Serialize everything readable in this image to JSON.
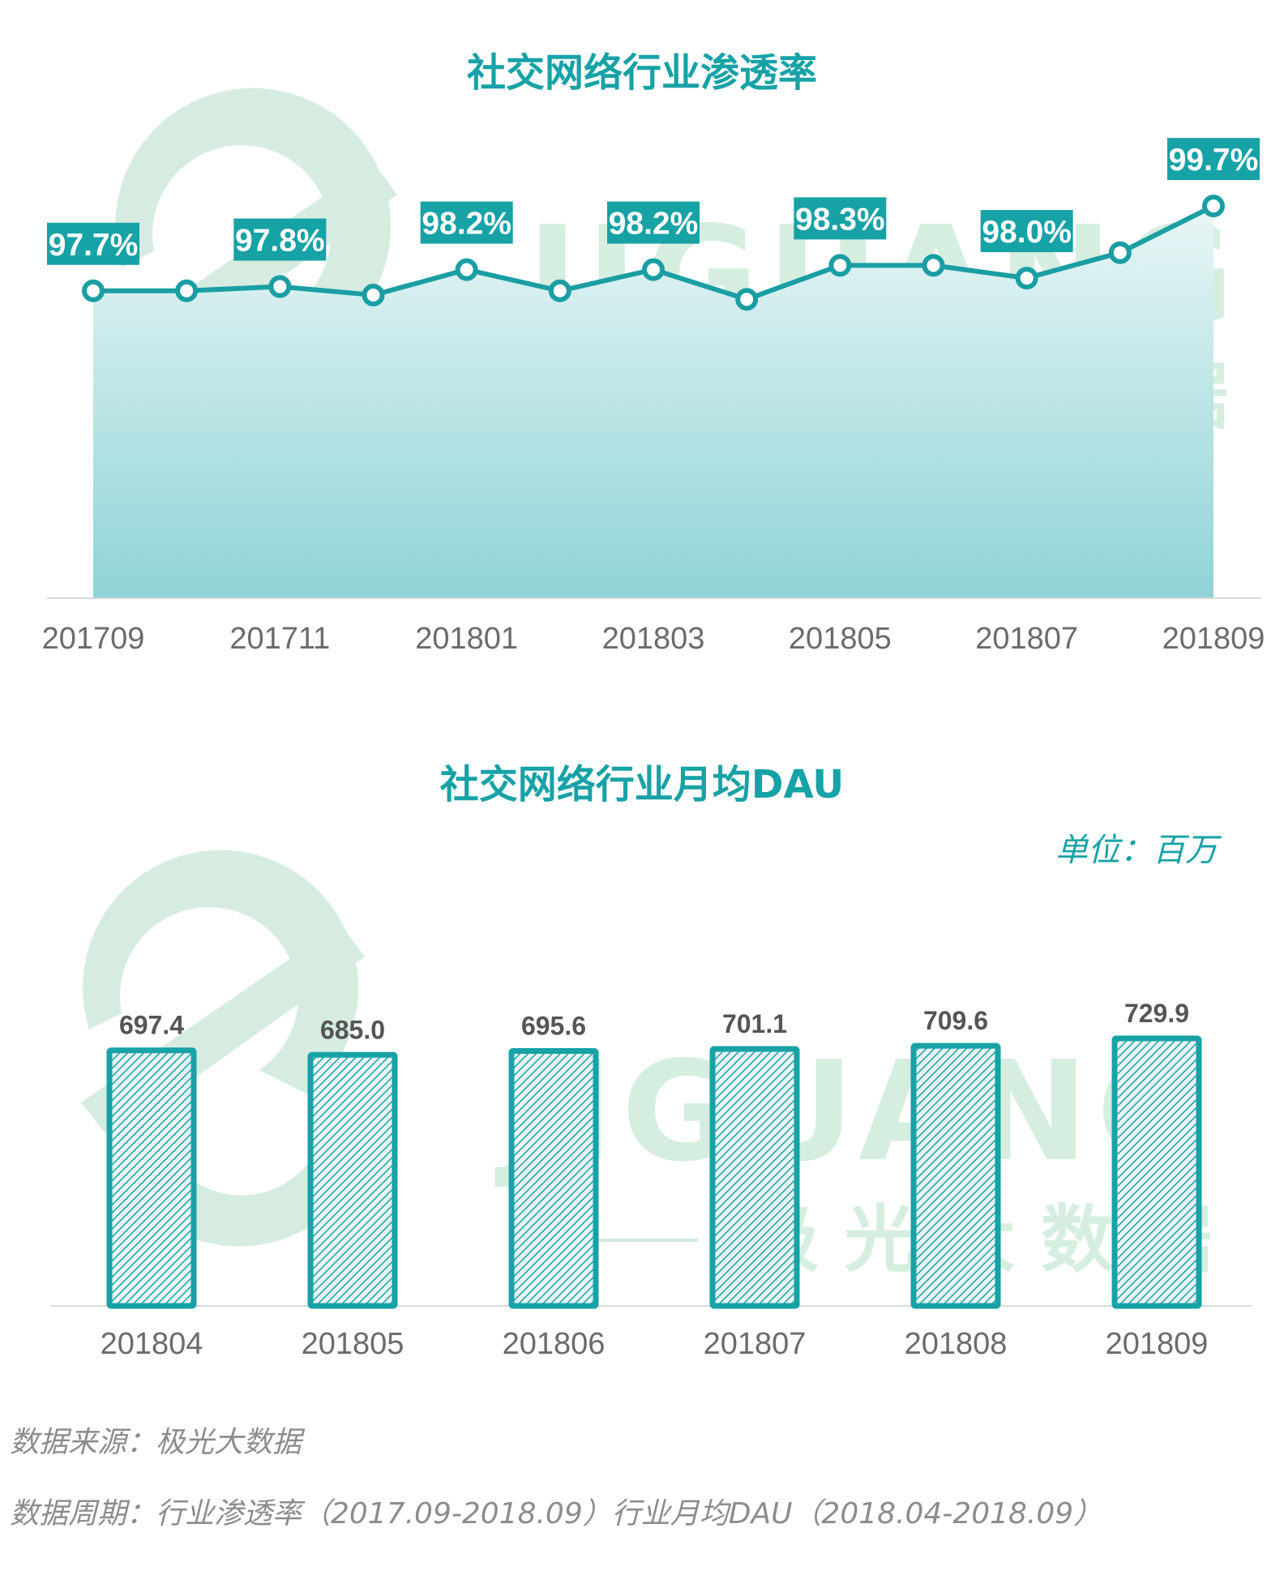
{
  "colors": {
    "accent": "#17a2a6",
    "line": "#1a9ea3",
    "area_top": "#e9f6f6",
    "area_bottom": "#8fd3d6",
    "bar_fill": "#17a2a6",
    "watermark": "#cfe9dc",
    "tick_text": "#6b6b6b",
    "footer_text": "#8c8c8c"
  },
  "watermark": {
    "brand": "JIGUANG",
    "subtitle": "极 光 大 数 据"
  },
  "chart_data": [
    {
      "type": "area",
      "title": "社交网络行业渗透率",
      "x": [
        "201709",
        "201710",
        "201711",
        "201712",
        "201801",
        "201802",
        "201803",
        "201804",
        "201805",
        "201806",
        "201807",
        "201808",
        "201809"
      ],
      "x_tick_labels": [
        "201709",
        "201711",
        "201801",
        "201803",
        "201805",
        "201807",
        "201809"
      ],
      "series": [
        {
          "values": [
            97.7,
            97.7,
            97.8,
            97.6,
            98.2,
            97.7,
            98.2,
            97.5,
            98.3,
            98.3,
            98.0,
            98.6,
            99.7
          ]
        }
      ],
      "data_labels": [
        "97.7%",
        "97.8%",
        "98.2%",
        "98.2%",
        "98.3%",
        "98.0%",
        "99.7%"
      ],
      "data_label_x": [
        "201709",
        "201711",
        "201801",
        "201803",
        "201805",
        "201807",
        "201809"
      ],
      "ylim": [
        90,
        100
      ],
      "grid": false,
      "legend": "none"
    },
    {
      "type": "bar",
      "title": "社交网络行业月均DAU",
      "unit_label": "单位：百万",
      "categories": [
        "201804",
        "201805",
        "201806",
        "201807",
        "201808",
        "201809"
      ],
      "values": [
        697.4,
        685.0,
        695.6,
        701.1,
        709.6,
        729.9
      ],
      "value_labels": [
        "697.4",
        "685.0",
        "695.6",
        "701.1",
        "709.6",
        "729.9"
      ],
      "ylim": [
        0,
        760
      ],
      "grid": false,
      "legend": "none"
    }
  ],
  "footer": {
    "source": "数据来源：极光大数据",
    "period": "数据周期：行业渗透率（2017.09-2018.09）行业月均DAU（2018.04-2018.09）"
  }
}
